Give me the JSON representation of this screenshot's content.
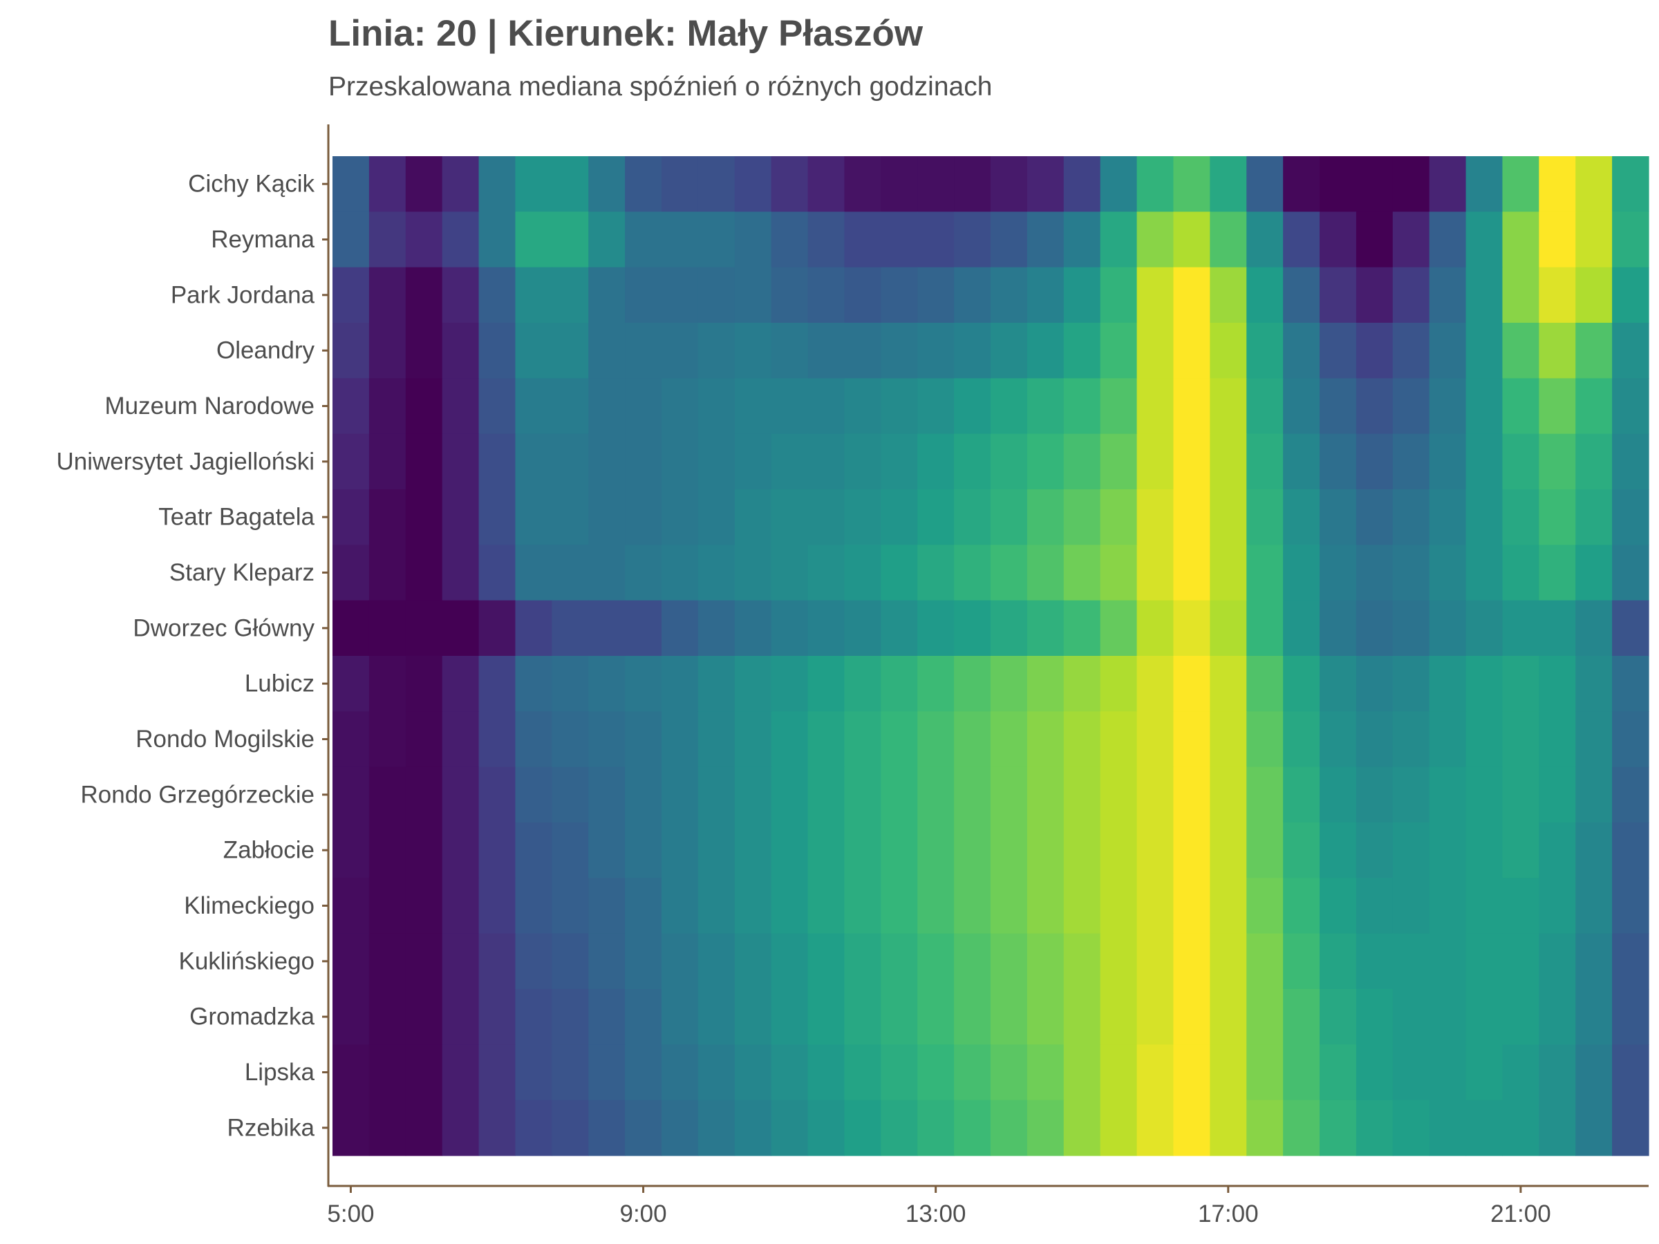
{
  "chart_data": {
    "type": "heatmap",
    "title": "Linia: 20 | Kierunek: Mały Płaszów",
    "subtitle": "Przeskalowana mediana spóźnień o różnych godzinach",
    "xlabel": "",
    "ylabel": "",
    "x_start_hour": 5.0,
    "x_step_hours": 0.5,
    "x_ticks": [
      "5:00",
      "9:00",
      "13:00",
      "17:00",
      "21:00"
    ],
    "x_tick_hours": [
      5,
      9,
      13,
      17,
      21
    ],
    "xlim_hours": [
      4.75,
      22.75
    ],
    "colormap": [
      "#440154",
      "#482878",
      "#3e4989",
      "#31688e",
      "#26828e",
      "#1f9e89",
      "#35b779",
      "#6ece58",
      "#b5de2b",
      "#fde725"
    ],
    "axis_color": "#7a5c3d",
    "grid": false,
    "legend": "none",
    "stops": [
      "Cichy Kącik",
      "Reymana",
      "Park Jordana",
      "Oleandry",
      "Muzeum Narodowe",
      "Uniwersytet Jagielloński",
      "Teatr Bagatela",
      "Stary Kleparz",
      "Dworzec Główny",
      "Lubicz",
      "Rondo Mogilskie",
      "Rondo Grzegórzeckie",
      "Zabłocie",
      "Klimeckiego",
      "Kuklińskiego",
      "Gromadzka",
      "Lipska",
      "Rzebika"
    ],
    "values": [
      [
        0.3,
        0.11,
        0.03,
        0.12,
        0.4,
        0.52,
        0.52,
        0.4,
        0.28,
        0.25,
        0.25,
        0.22,
        0.15,
        0.1,
        0.05,
        0.04,
        0.04,
        0.04,
        0.07,
        0.1,
        0.2,
        0.45,
        0.65,
        0.72,
        0.6,
        0.3,
        0.02,
        0.0,
        0.0,
        0.0,
        0.1,
        0.45,
        0.72,
        1.0,
        0.92,
        0.6
      ],
      [
        0.3,
        0.16,
        0.11,
        0.2,
        0.4,
        0.6,
        0.6,
        0.48,
        0.38,
        0.38,
        0.38,
        0.36,
        0.3,
        0.26,
        0.22,
        0.22,
        0.22,
        0.24,
        0.28,
        0.34,
        0.42,
        0.6,
        0.82,
        0.88,
        0.72,
        0.48,
        0.22,
        0.08,
        0.0,
        0.1,
        0.3,
        0.52,
        0.82,
        1.0,
        0.92,
        0.62
      ],
      [
        0.18,
        0.06,
        0.01,
        0.1,
        0.3,
        0.48,
        0.48,
        0.38,
        0.35,
        0.35,
        0.35,
        0.36,
        0.32,
        0.3,
        0.28,
        0.3,
        0.32,
        0.36,
        0.4,
        0.44,
        0.52,
        0.65,
        0.92,
        1.0,
        0.85,
        0.55,
        0.32,
        0.15,
        0.08,
        0.18,
        0.34,
        0.52,
        0.82,
        0.95,
        0.88,
        0.56
      ],
      [
        0.16,
        0.06,
        0.01,
        0.08,
        0.28,
        0.46,
        0.46,
        0.38,
        0.38,
        0.38,
        0.4,
        0.42,
        0.4,
        0.38,
        0.38,
        0.4,
        0.42,
        0.44,
        0.48,
        0.52,
        0.58,
        0.68,
        0.92,
        1.0,
        0.88,
        0.58,
        0.4,
        0.26,
        0.2,
        0.26,
        0.38,
        0.52,
        0.72,
        0.85,
        0.72,
        0.5
      ],
      [
        0.12,
        0.04,
        0.0,
        0.08,
        0.26,
        0.42,
        0.42,
        0.38,
        0.38,
        0.4,
        0.42,
        0.44,
        0.44,
        0.44,
        0.46,
        0.48,
        0.5,
        0.54,
        0.58,
        0.62,
        0.66,
        0.72,
        0.92,
        1.0,
        0.9,
        0.6,
        0.42,
        0.32,
        0.26,
        0.3,
        0.4,
        0.52,
        0.66,
        0.76,
        0.66,
        0.48
      ],
      [
        0.1,
        0.04,
        0.0,
        0.08,
        0.24,
        0.4,
        0.4,
        0.38,
        0.38,
        0.4,
        0.42,
        0.44,
        0.46,
        0.46,
        0.48,
        0.5,
        0.54,
        0.58,
        0.62,
        0.66,
        0.7,
        0.76,
        0.92,
        1.0,
        0.9,
        0.62,
        0.46,
        0.36,
        0.3,
        0.34,
        0.42,
        0.52,
        0.62,
        0.7,
        0.62,
        0.46
      ],
      [
        0.08,
        0.02,
        0.0,
        0.08,
        0.24,
        0.4,
        0.4,
        0.38,
        0.38,
        0.4,
        0.42,
        0.46,
        0.48,
        0.48,
        0.5,
        0.52,
        0.56,
        0.6,
        0.64,
        0.7,
        0.74,
        0.8,
        0.94,
        1.0,
        0.9,
        0.64,
        0.5,
        0.4,
        0.34,
        0.38,
        0.44,
        0.52,
        0.6,
        0.68,
        0.6,
        0.44
      ],
      [
        0.06,
        0.02,
        0.0,
        0.08,
        0.22,
        0.38,
        0.38,
        0.38,
        0.4,
        0.42,
        0.44,
        0.46,
        0.48,
        0.5,
        0.52,
        0.56,
        0.6,
        0.64,
        0.68,
        0.72,
        0.78,
        0.82,
        0.94,
        1.0,
        0.9,
        0.66,
        0.52,
        0.42,
        0.38,
        0.4,
        0.46,
        0.52,
        0.58,
        0.64,
        0.56,
        0.42
      ],
      [
        0.0,
        0.0,
        0.0,
        0.0,
        0.05,
        0.2,
        0.24,
        0.24,
        0.24,
        0.3,
        0.34,
        0.38,
        0.42,
        0.44,
        0.46,
        0.5,
        0.54,
        0.56,
        0.6,
        0.64,
        0.68,
        0.76,
        0.9,
        0.96,
        0.88,
        0.66,
        0.52,
        0.4,
        0.36,
        0.38,
        0.44,
        0.48,
        0.52,
        0.52,
        0.46,
        0.26
      ],
      [
        0.06,
        0.02,
        0.01,
        0.08,
        0.2,
        0.34,
        0.36,
        0.38,
        0.4,
        0.42,
        0.46,
        0.5,
        0.52,
        0.56,
        0.6,
        0.64,
        0.68,
        0.72,
        0.76,
        0.8,
        0.84,
        0.88,
        0.94,
        1.0,
        0.92,
        0.72,
        0.58,
        0.48,
        0.44,
        0.46,
        0.52,
        0.56,
        0.58,
        0.56,
        0.48,
        0.36
      ],
      [
        0.04,
        0.02,
        0.01,
        0.08,
        0.2,
        0.32,
        0.34,
        0.36,
        0.38,
        0.42,
        0.46,
        0.5,
        0.54,
        0.58,
        0.62,
        0.66,
        0.7,
        0.74,
        0.78,
        0.82,
        0.86,
        0.9,
        0.94,
        1.0,
        0.92,
        0.74,
        0.6,
        0.5,
        0.46,
        0.48,
        0.52,
        0.56,
        0.58,
        0.56,
        0.48,
        0.34
      ],
      [
        0.04,
        0.01,
        0.01,
        0.08,
        0.18,
        0.3,
        0.32,
        0.34,
        0.38,
        0.42,
        0.46,
        0.5,
        0.54,
        0.58,
        0.62,
        0.66,
        0.7,
        0.74,
        0.78,
        0.82,
        0.86,
        0.9,
        0.94,
        1.0,
        0.92,
        0.76,
        0.62,
        0.52,
        0.48,
        0.5,
        0.54,
        0.56,
        0.58,
        0.56,
        0.48,
        0.32
      ],
      [
        0.04,
        0.01,
        0.01,
        0.08,
        0.18,
        0.28,
        0.3,
        0.34,
        0.38,
        0.42,
        0.46,
        0.5,
        0.54,
        0.58,
        0.62,
        0.66,
        0.7,
        0.74,
        0.78,
        0.82,
        0.86,
        0.9,
        0.94,
        1.0,
        0.92,
        0.76,
        0.64,
        0.54,
        0.5,
        0.52,
        0.54,
        0.56,
        0.58,
        0.54,
        0.46,
        0.3
      ],
      [
        0.03,
        0.01,
        0.01,
        0.08,
        0.18,
        0.28,
        0.3,
        0.32,
        0.36,
        0.42,
        0.46,
        0.5,
        0.54,
        0.58,
        0.62,
        0.66,
        0.7,
        0.74,
        0.78,
        0.82,
        0.86,
        0.9,
        0.94,
        1.0,
        0.92,
        0.78,
        0.66,
        0.56,
        0.52,
        0.52,
        0.54,
        0.56,
        0.56,
        0.54,
        0.46,
        0.3
      ],
      [
        0.03,
        0.01,
        0.01,
        0.08,
        0.16,
        0.26,
        0.28,
        0.32,
        0.36,
        0.4,
        0.44,
        0.48,
        0.52,
        0.56,
        0.6,
        0.64,
        0.68,
        0.72,
        0.76,
        0.8,
        0.84,
        0.9,
        0.94,
        1.0,
        0.92,
        0.8,
        0.68,
        0.58,
        0.54,
        0.54,
        0.54,
        0.56,
        0.56,
        0.52,
        0.44,
        0.28
      ],
      [
        0.03,
        0.01,
        0.01,
        0.08,
        0.16,
        0.24,
        0.26,
        0.3,
        0.34,
        0.4,
        0.44,
        0.48,
        0.52,
        0.56,
        0.6,
        0.64,
        0.68,
        0.72,
        0.76,
        0.8,
        0.84,
        0.9,
        0.94,
        1.0,
        0.92,
        0.8,
        0.7,
        0.6,
        0.56,
        0.54,
        0.54,
        0.56,
        0.56,
        0.52,
        0.44,
        0.28
      ],
      [
        0.02,
        0.01,
        0.01,
        0.08,
        0.16,
        0.24,
        0.26,
        0.3,
        0.34,
        0.38,
        0.42,
        0.46,
        0.5,
        0.54,
        0.58,
        0.62,
        0.66,
        0.7,
        0.74,
        0.78,
        0.84,
        0.9,
        0.96,
        1.0,
        0.92,
        0.8,
        0.7,
        0.62,
        0.56,
        0.54,
        0.54,
        0.56,
        0.54,
        0.5,
        0.42,
        0.26
      ],
      [
        0.02,
        0.01,
        0.01,
        0.08,
        0.16,
        0.22,
        0.24,
        0.28,
        0.32,
        0.36,
        0.4,
        0.44,
        0.48,
        0.52,
        0.56,
        0.6,
        0.64,
        0.68,
        0.72,
        0.76,
        0.84,
        0.9,
        0.96,
        1.0,
        0.92,
        0.82,
        0.72,
        0.64,
        0.58,
        0.56,
        0.54,
        0.54,
        0.54,
        0.5,
        0.42,
        0.26
      ]
    ]
  }
}
